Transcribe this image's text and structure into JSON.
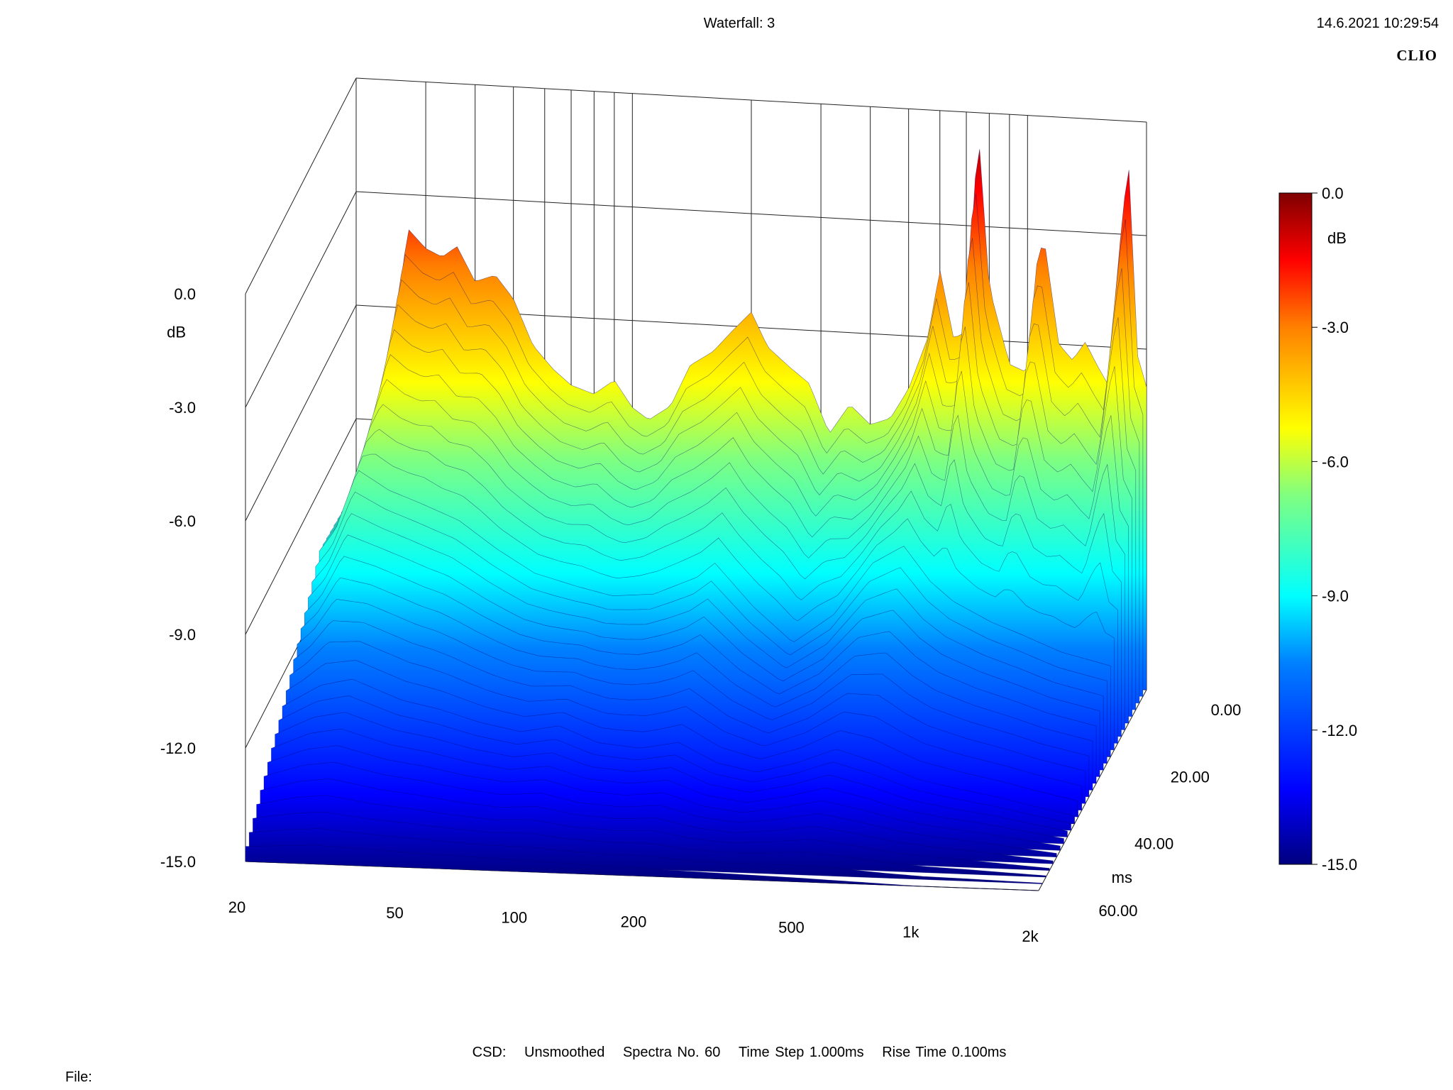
{
  "header": {
    "title": "Waterfall: 3",
    "datetime": "14.6.2021 10:29:54",
    "brand": "CLIO"
  },
  "footer": {
    "mode": "CSD:",
    "smoothing": "Unsmoothed",
    "spectra": "Spectra No. 60",
    "time_step": "Time Step 1.000ms",
    "rise_time": "Rise Time 0.100ms",
    "file_label": "File:"
  },
  "colors": {
    "grid": "#222222",
    "colormap": [
      "#00007f",
      "#0000ff",
      "#0080ff",
      "#00ffff",
      "#80ff80",
      "#ffff00",
      "#ff8000",
      "#ff0000",
      "#7f0000"
    ]
  },
  "chart_data": {
    "type": "waterfall",
    "x_axis": {
      "scale": "log",
      "range": [
        20,
        2000
      ],
      "tick_values": [
        20,
        50,
        100,
        200,
        500,
        1000,
        2000
      ],
      "tick_labels": [
        "20",
        "50",
        "100",
        "200",
        "500",
        "1k",
        "2k"
      ]
    },
    "y_axis": {
      "unit": "dB",
      "range": [
        -15.0,
        0.0
      ],
      "tick_values": [
        0.0,
        -3.0,
        -6.0,
        -9.0,
        -12.0,
        -15.0
      ],
      "tick_labels": [
        "0.0",
        "-3.0",
        "-6.0",
        "-9.0",
        "-12.0",
        "-15.0"
      ]
    },
    "z_axis": {
      "unit": "ms",
      "range": [
        0,
        60
      ],
      "tick_values": [
        0,
        20,
        40,
        60
      ],
      "tick_labels": [
        "0.00",
        "20.00",
        "40.00",
        "60.00"
      ]
    },
    "colorbar": {
      "unit": "dB",
      "range": [
        -15.0,
        0.0
      ],
      "tick_values": [
        0.0,
        -3.0,
        -6.0,
        -9.0,
        -12.0,
        -15.0
      ],
      "tick_labels": [
        "0.0",
        "-3.0",
        "-6.0",
        "-9.0",
        "-12.0",
        "-15.0"
      ]
    },
    "series": [
      {
        "time_ms": 0,
        "points": [
          [
            20,
            -10.8
          ],
          [
            22,
            -10.2
          ],
          [
            25,
            -6.8
          ],
          [
            27,
            -3.9
          ],
          [
            30,
            -4.4
          ],
          [
            33,
            -4.6
          ],
          [
            36,
            -4.3
          ],
          [
            40,
            -5.2
          ],
          [
            45,
            -5.0
          ],
          [
            50,
            -5.6
          ],
          [
            56,
            -6.8
          ],
          [
            63,
            -7.4
          ],
          [
            70,
            -7.8
          ],
          [
            80,
            -8.0
          ],
          [
            90,
            -7.6
          ],
          [
            100,
            -8.3
          ],
          [
            110,
            -8.6
          ],
          [
            125,
            -8.2
          ],
          [
            140,
            -7.1
          ],
          [
            160,
            -6.7
          ],
          [
            180,
            -6.1
          ],
          [
            200,
            -5.6
          ],
          [
            220,
            -6.5
          ],
          [
            250,
            -7.0
          ],
          [
            280,
            -7.4
          ],
          [
            315,
            -8.7
          ],
          [
            355,
            -7.9
          ],
          [
            400,
            -8.4
          ],
          [
            450,
            -8.2
          ],
          [
            500,
            -7.4
          ],
          [
            560,
            -6.0
          ],
          [
            600,
            -4.2
          ],
          [
            650,
            -6.0
          ],
          [
            700,
            -5.8
          ],
          [
            750,
            -0.4
          ],
          [
            800,
            -4.6
          ],
          [
            900,
            -6.6
          ],
          [
            1000,
            -6.8
          ],
          [
            1050,
            -4.0
          ],
          [
            1100,
            -3.2
          ],
          [
            1200,
            -6.0
          ],
          [
            1300,
            -6.4
          ],
          [
            1400,
            -5.9
          ],
          [
            1500,
            -6.5
          ],
          [
            1600,
            -7.0
          ],
          [
            1700,
            -3.6
          ],
          [
            1800,
            -1.0
          ],
          [
            1900,
            -6.2
          ],
          [
            2000,
            -7.0
          ]
        ]
      },
      {
        "time_ms": 20,
        "points": [
          [
            20,
            -10.6
          ],
          [
            22,
            -10.0
          ],
          [
            25,
            -8.4
          ],
          [
            30,
            -8.9
          ],
          [
            36,
            -9.2
          ],
          [
            45,
            -9.6
          ],
          [
            56,
            -10.3
          ],
          [
            70,
            -10.9
          ],
          [
            90,
            -11.2
          ],
          [
            110,
            -11.4
          ],
          [
            140,
            -11.3
          ],
          [
            180,
            -10.8
          ],
          [
            200,
            -10.4
          ],
          [
            250,
            -11.5
          ],
          [
            315,
            -12.4
          ],
          [
            400,
            -11.6
          ],
          [
            500,
            -10.2
          ],
          [
            600,
            -9.7
          ],
          [
            700,
            -10.6
          ],
          [
            800,
            -11.1
          ],
          [
            1000,
            -11.6
          ],
          [
            1200,
            -11.9
          ],
          [
            1500,
            -12.3
          ],
          [
            2000,
            -12.6
          ]
        ]
      },
      {
        "time_ms": 40,
        "points": [
          [
            20,
            -12.8
          ],
          [
            25,
            -12.2
          ],
          [
            30,
            -12.0
          ],
          [
            40,
            -12.5
          ],
          [
            50,
            -12.7
          ],
          [
            63,
            -13.0
          ],
          [
            80,
            -13.2
          ],
          [
            100,
            -13.0
          ],
          [
            125,
            -13.4
          ],
          [
            160,
            -13.5
          ],
          [
            200,
            -13.3
          ],
          [
            250,
            -13.8
          ],
          [
            315,
            -14.0
          ],
          [
            400,
            -13.7
          ],
          [
            500,
            -13.3
          ],
          [
            630,
            -13.6
          ],
          [
            800,
            -14.0
          ],
          [
            1000,
            -14.2
          ],
          [
            1300,
            -14.4
          ],
          [
            1600,
            -14.6
          ],
          [
            2000,
            -14.8
          ]
        ]
      },
      {
        "time_ms": 60,
        "points": [
          [
            20,
            -14.6
          ],
          [
            30,
            -14.5
          ],
          [
            50,
            -14.6
          ],
          [
            100,
            -14.7
          ],
          [
            200,
            -14.8
          ],
          [
            500,
            -14.9
          ],
          [
            1000,
            -15.0
          ],
          [
            2000,
            -15.0
          ]
        ]
      }
    ]
  }
}
